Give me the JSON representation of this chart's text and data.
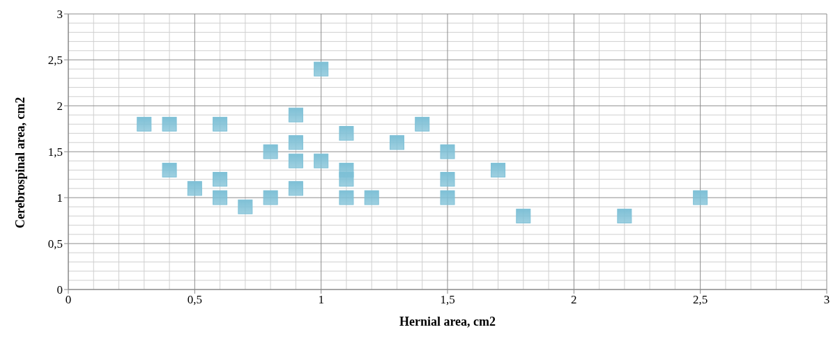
{
  "chart_data": {
    "type": "scatter",
    "xlabel": "Hernial area, cm2",
    "ylabel": "Cerebrospinal area, cm2",
    "x": [
      0.3,
      0.4,
      0.6,
      0.4,
      0.5,
      0.6,
      0.6,
      0.7,
      0.8,
      0.8,
      0.9,
      0.9,
      0.9,
      0.9,
      1.0,
      1.0,
      1.1,
      1.1,
      1.1,
      1.1,
      1.2,
      1.3,
      1.4,
      1.5,
      1.5,
      1.5,
      1.7,
      1.8,
      2.2,
      2.5
    ],
    "values": [
      1.8,
      1.8,
      1.8,
      1.3,
      1.1,
      1.2,
      1.0,
      0.9,
      1.5,
      1.0,
      1.9,
      1.6,
      1.4,
      1.1,
      2.4,
      1.4,
      1.7,
      1.3,
      1.2,
      1.0,
      1.0,
      1.6,
      1.8,
      1.5,
      1.2,
      1.0,
      1.3,
      0.8,
      0.8,
      1.0
    ],
    "color": "#7ec0d6",
    "marker": "square",
    "grid": true,
    "xlim": [
      0,
      3
    ],
    "xticks": [
      0,
      {
        "value": 0.5,
        "label": "0,5"
      },
      1,
      {
        "value": 1.5,
        "label": "1,5"
      },
      2,
      {
        "value": 2.5,
        "label": "2,5"
      },
      3
    ],
    "ylim": [
      0,
      3
    ],
    "yticks": [
      0,
      {
        "value": 0.5,
        "label": "0,5"
      },
      1,
      {
        "value": 1.5,
        "label": "1,5"
      },
      2,
      {
        "value": 2.5,
        "label": "2,5"
      },
      3
    ]
  }
}
